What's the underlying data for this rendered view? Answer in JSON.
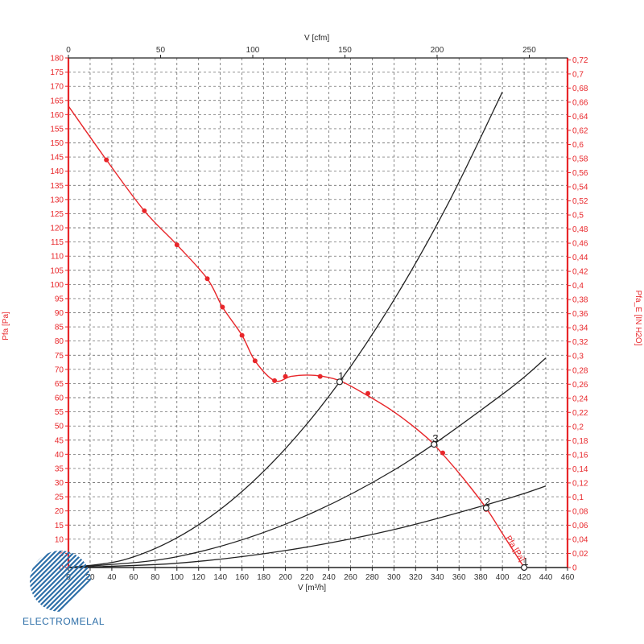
{
  "logo": {
    "text": "ELECTROMELAL"
  },
  "colors": {
    "fan_curve": "#e8262a",
    "system_curve": "#222222",
    "brand": "#2e6fa8"
  },
  "chart_data": {
    "type": "line",
    "xlabel_bottom": "V [m³/h]",
    "xlabel_top": "V [cfm]",
    "ylabel_left": "Pfa [Pa]",
    "ylabel_right": "Pfa_E [IN H2O]",
    "xlim": [
      0,
      460
    ],
    "ylim": [
      0,
      180
    ],
    "x_ticks": [
      0,
      20,
      40,
      60,
      80,
      100,
      120,
      140,
      160,
      180,
      200,
      220,
      240,
      260,
      280,
      300,
      320,
      340,
      360,
      380,
      400,
      420,
      440,
      460
    ],
    "y_ticks": [
      0,
      5,
      10,
      15,
      20,
      25,
      30,
      35,
      40,
      45,
      50,
      55,
      60,
      65,
      70,
      75,
      80,
      85,
      90,
      95,
      100,
      105,
      110,
      115,
      120,
      125,
      130,
      135,
      140,
      145,
      150,
      155,
      160,
      165,
      170,
      175,
      180
    ],
    "top_ticks": [
      "0",
      "50",
      "100",
      "150",
      "200",
      "250"
    ],
    "top_tick_values": [
      0,
      50,
      100,
      150,
      200,
      250
    ],
    "top_per_bottom": 0.5886,
    "right_ticks": [
      "0",
      "0,02",
      "0,04",
      "0,06",
      "0,08",
      "0,1",
      "0,12",
      "0,14",
      "0,16",
      "0,18",
      "0,2",
      "0,22",
      "0,24",
      "0,26",
      "0,28",
      "0,3",
      "0,32",
      "0,34",
      "0,36",
      "0,38",
      "0,4",
      "0,42",
      "0,44",
      "0,46",
      "0,48",
      "0,5",
      "0,52",
      "0,54",
      "0,56",
      "0,58",
      "0,6",
      "0,62",
      "0,64",
      "0,66",
      "0,68",
      "0,7",
      "0,72"
    ],
    "right_tick_values": [
      0,
      0.02,
      0.04,
      0.06,
      0.08,
      0.1,
      0.12,
      0.14,
      0.16,
      0.18,
      0.2,
      0.22,
      0.24,
      0.26,
      0.28,
      0.3,
      0.32,
      0.34,
      0.36,
      0.38,
      0.4,
      0.42,
      0.44,
      0.46,
      0.48,
      0.5,
      0.52,
      0.54,
      0.56,
      0.58,
      0.6,
      0.62,
      0.64,
      0.66,
      0.68,
      0.7,
      0.72
    ],
    "right_per_left": 0.004015,
    "grid": true,
    "series": [
      {
        "name": "Pfa [Pa]",
        "kind": "fan_curve",
        "curve": [
          [
            0,
            163
          ],
          [
            35,
            144
          ],
          [
            70,
            126
          ],
          [
            100,
            114
          ],
          [
            128,
            102
          ],
          [
            142,
            92
          ],
          [
            160,
            82
          ],
          [
            172,
            73
          ],
          [
            190,
            66
          ],
          [
            205,
            67.5
          ],
          [
            220,
            68
          ],
          [
            235,
            67.5
          ],
          [
            250,
            66
          ],
          [
            270,
            62
          ],
          [
            300,
            55
          ],
          [
            330,
            46
          ],
          [
            345,
            40
          ],
          [
            365,
            31
          ],
          [
            385,
            21
          ],
          [
            400,
            12
          ],
          [
            410,
            6
          ],
          [
            420,
            0
          ]
        ],
        "points": [
          [
            35,
            144
          ],
          [
            70,
            126
          ],
          [
            100,
            114
          ],
          [
            128,
            102
          ],
          [
            142,
            92
          ],
          [
            160,
            82
          ],
          [
            172,
            73
          ],
          [
            190,
            66
          ],
          [
            200,
            67.5
          ],
          [
            232,
            67.5
          ],
          [
            276,
            61.5
          ],
          [
            345,
            40.5
          ],
          [
            385,
            20.5
          ]
        ]
      },
      {
        "kind": "system_curve",
        "x": [
          0,
          50,
          100,
          150,
          200,
          250,
          300,
          350,
          400
        ],
        "y": [
          0,
          2.6,
          10.5,
          23.6,
          42,
          65.6,
          94.5,
          128.6,
          168
        ]
      },
      {
        "kind": "system_curve",
        "x": [
          0,
          100,
          200,
          300,
          400,
          440
        ],
        "y": [
          0,
          3.8,
          15.3,
          34.4,
          61.2,
          74
        ]
      },
      {
        "kind": "system_curve",
        "x": [
          0,
          100,
          200,
          300,
          400,
          440
        ],
        "y": [
          0,
          1.5,
          6,
          13.4,
          23.8,
          28.8
        ]
      }
    ],
    "operating_points": [
      {
        "label": "1",
        "x": 250,
        "y": 65.6
      },
      {
        "label": "2",
        "x": 385,
        "y": 21
      },
      {
        "label": "3",
        "x": 337,
        "y": 43.5
      },
      {
        "label": "1",
        "x": 420,
        "y": 0
      }
    ],
    "annotations": [
      {
        "text": "Pfa [Pa]"
      }
    ]
  }
}
